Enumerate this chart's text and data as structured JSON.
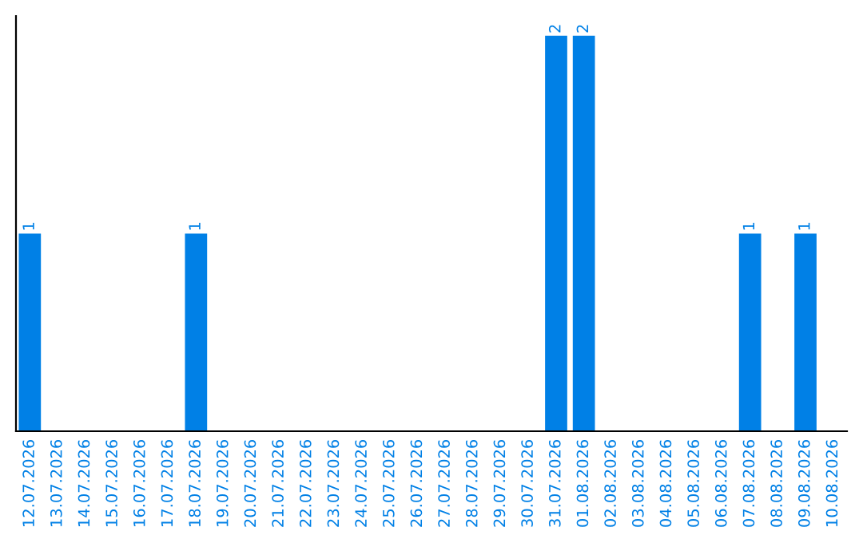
{
  "chart_data": {
    "type": "bar",
    "categories": [
      "12.07.2026",
      "13.07.2026",
      "14.07.2026",
      "15.07.2026",
      "16.07.2026",
      "17.07.2026",
      "18.07.2026",
      "19.07.2026",
      "20.07.2026",
      "21.07.2026",
      "22.07.2026",
      "23.07.2026",
      "24.07.2026",
      "25.07.2026",
      "26.07.2026",
      "27.07.2026",
      "28.07.2026",
      "29.07.2026",
      "30.07.2026",
      "31.07.2026",
      "01.08.2026",
      "02.08.2026",
      "03.08.2026",
      "04.08.2026",
      "05.08.2026",
      "06.08.2026",
      "07.08.2026",
      "08.08.2026",
      "09.08.2026",
      "10.08.2026"
    ],
    "values": [
      1,
      0,
      0,
      0,
      0,
      0,
      1,
      0,
      0,
      0,
      0,
      0,
      0,
      0,
      0,
      0,
      0,
      0,
      0,
      2,
      2,
      0,
      0,
      0,
      0,
      0,
      1,
      0,
      1,
      0
    ],
    "value_labels": [
      "1",
      null,
      null,
      null,
      null,
      null,
      "1",
      null,
      null,
      null,
      null,
      null,
      null,
      null,
      null,
      null,
      null,
      null,
      null,
      "2",
      "2",
      null,
      null,
      null,
      null,
      null,
      "1",
      null,
      "1",
      null
    ],
    "color": "#0080e6",
    "grid": false,
    "legend": false,
    "tick_labels": "x"
  }
}
